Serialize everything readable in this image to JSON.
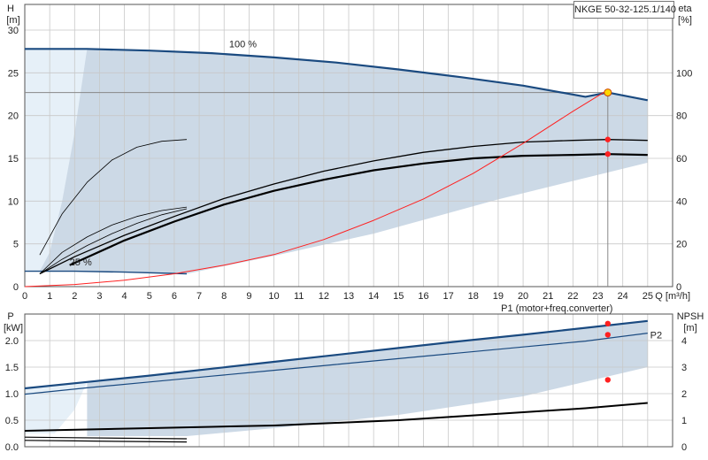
{
  "model": "NKGE 50-32-125.1/140",
  "colors": {
    "band": "#ccd9e6",
    "band_light": "#e6f0f8",
    "curve_dark": "#1a4a80",
    "curve_black": "#000000",
    "efficiency": "#ff2020",
    "duty_marker": "#ff2020",
    "duty_point_fill": "#ffd700",
    "grid": "#c8c8c8"
  },
  "chart_data": [
    {
      "type": "line",
      "panel": "top",
      "ylabel_left": "H",
      "yunit_left": "[m]",
      "ylabel_right": "eta",
      "yunit_right": "[%]",
      "xlabel": "Q [m³/h]",
      "xlim": [
        0,
        26
      ],
      "ylim": [
        0,
        33
      ],
      "ylim_right": [
        0,
        132
      ],
      "x_ticks": [
        0,
        1,
        2,
        3,
        4,
        5,
        6,
        7,
        8,
        9,
        10,
        11,
        12,
        13,
        14,
        15,
        16,
        17,
        18,
        19,
        20,
        21,
        22,
        23,
        24,
        25
      ],
      "y_ticks": [
        0,
        5,
        10,
        15,
        20,
        25,
        30
      ],
      "y_ticks_right": [
        0,
        20,
        40,
        60,
        80,
        100
      ],
      "grid": true,
      "annotations": [
        {
          "text": "100 %",
          "x": 8.2,
          "y": 28.0
        },
        {
          "text": "25 %",
          "x": 1.8,
          "y": 2.5
        }
      ],
      "series": [
        {
          "role": "max_curve",
          "x": [
            0,
            2.5,
            5,
            7.5,
            10,
            12.5,
            15,
            17.5,
            20,
            22.5,
            23.4,
            25
          ],
          "y": [
            27.8,
            27.8,
            27.6,
            27.3,
            26.8,
            26.2,
            25.4,
            24.5,
            23.5,
            22.2,
            22.7,
            21.8
          ]
        },
        {
          "role": "min_curve",
          "x": [
            0,
            2,
            4,
            6.5
          ],
          "y": [
            1.8,
            1.8,
            1.7,
            1.5
          ]
        },
        {
          "role": "duty_speed_curve_1",
          "x": [
            0.6,
            2,
            4,
            6,
            8,
            10,
            12,
            14,
            16,
            18,
            20,
            22,
            23.4,
            25
          ],
          "y": [
            1.5,
            3.5,
            6.0,
            8.2,
            10.3,
            12.0,
            13.5,
            14.7,
            15.7,
            16.4,
            16.9,
            17.1,
            17.2,
            17.1
          ]
        },
        {
          "role": "duty_speed_curve_2",
          "x": [
            1.8,
            4,
            6,
            8,
            10,
            12,
            14,
            16,
            18,
            20,
            22,
            23.4,
            25
          ],
          "y": [
            2.5,
            5.4,
            7.6,
            9.6,
            11.2,
            12.5,
            13.6,
            14.4,
            15.0,
            15.3,
            15.4,
            15.5,
            15.4
          ]
        },
        {
          "role": "speed_curve_3",
          "x": [
            0.6,
            1.5,
            2.5,
            3.5,
            4.5,
            5.5,
            6.5
          ],
          "y": [
            3.7,
            8.5,
            12.2,
            14.8,
            16.3,
            17.0,
            17.2
          ]
        },
        {
          "role": "speed_curve_4",
          "x": [
            0.6,
            1.5,
            2.5,
            3.5,
            4.5,
            5.5,
            6.5
          ],
          "y": [
            1.5,
            4.0,
            5.8,
            7.2,
            8.2,
            8.9,
            9.3
          ]
        },
        {
          "role": "speed_curve_5",
          "x": [
            0.6,
            1.5,
            2.5,
            3.5,
            4.5,
            5.5,
            6.5
          ],
          "y": [
            1.5,
            3.2,
            4.8,
            6.2,
            7.4,
            8.4,
            9.1
          ]
        },
        {
          "role": "efficiency",
          "axis": "right",
          "x": [
            0,
            2,
            4,
            6,
            8,
            10,
            12,
            14,
            16,
            18,
            20,
            22,
            23.4
          ],
          "y": [
            0,
            1,
            3,
            6,
            10,
            15,
            22,
            31,
            41,
            53,
            67,
            82,
            92
          ]
        }
      ],
      "duty_point": {
        "x": 23.4,
        "y": 22.7
      },
      "duty_markers": [
        {
          "x": 23.4,
          "y": 17.2
        },
        {
          "x": 23.4,
          "y": 15.5
        }
      ]
    },
    {
      "type": "line",
      "panel": "bottom",
      "ylabel_left": "P",
      "yunit_left": "[kW]",
      "ylabel_right": "NPSH",
      "yunit_right": "[m]",
      "xlim": [
        0,
        26
      ],
      "ylim": [
        0,
        2.5
      ],
      "ylim_right": [
        0,
        5
      ],
      "y_ticks": [
        0,
        0.5,
        1.0,
        1.5,
        2.0
      ],
      "y_tick_labels": [
        "0.0",
        "0.5",
        "1.0",
        "1.5",
        "2.0"
      ],
      "y_ticks_right": [
        0,
        1,
        2,
        3,
        4
      ],
      "grid": true,
      "annotations": [
        {
          "text": "P1 (motor+freq.converter)",
          "x": 23.6,
          "y": 2.55
        },
        {
          "text": "P2",
          "x": 25.1,
          "y": 2.04
        }
      ],
      "series": [
        {
          "role": "P1_max",
          "x": [
            0,
            2.5,
            5,
            7.5,
            10,
            12.5,
            15,
            17.5,
            20,
            22.5,
            25
          ],
          "y": [
            1.1,
            1.22,
            1.34,
            1.47,
            1.6,
            1.73,
            1.86,
            1.99,
            2.11,
            2.24,
            2.37
          ]
        },
        {
          "role": "P2_max",
          "x": [
            0,
            2.5,
            5,
            7.5,
            10,
            12.5,
            15,
            17.5,
            20,
            22.5,
            25
          ],
          "y": [
            0.99,
            1.11,
            1.22,
            1.33,
            1.44,
            1.55,
            1.66,
            1.77,
            1.88,
            1.99,
            2.14
          ]
        },
        {
          "role": "P1_min",
          "x": [
            0,
            2,
            4,
            6.5
          ],
          "y": [
            0.18,
            0.17,
            0.16,
            0.15
          ]
        },
        {
          "role": "P1_low_2",
          "x": [
            0,
            2,
            4,
            6.5
          ],
          "y": [
            0.12,
            0.11,
            0.1,
            0.09
          ]
        },
        {
          "role": "NPSH",
          "axis": "right",
          "x": [
            0,
            2.5,
            5,
            7.5,
            10,
            12.5,
            15,
            17.5,
            20,
            22.5,
            25
          ],
          "y": [
            0.6,
            0.65,
            0.7,
            0.75,
            0.8,
            0.9,
            1.0,
            1.15,
            1.3,
            1.45,
            1.65
          ]
        }
      ],
      "duty_markers": [
        {
          "x": 23.4,
          "y": 2.32
        },
        {
          "x": 23.4,
          "y": 2.11
        },
        {
          "x": 23.4,
          "y": 1.26
        }
      ]
    }
  ]
}
